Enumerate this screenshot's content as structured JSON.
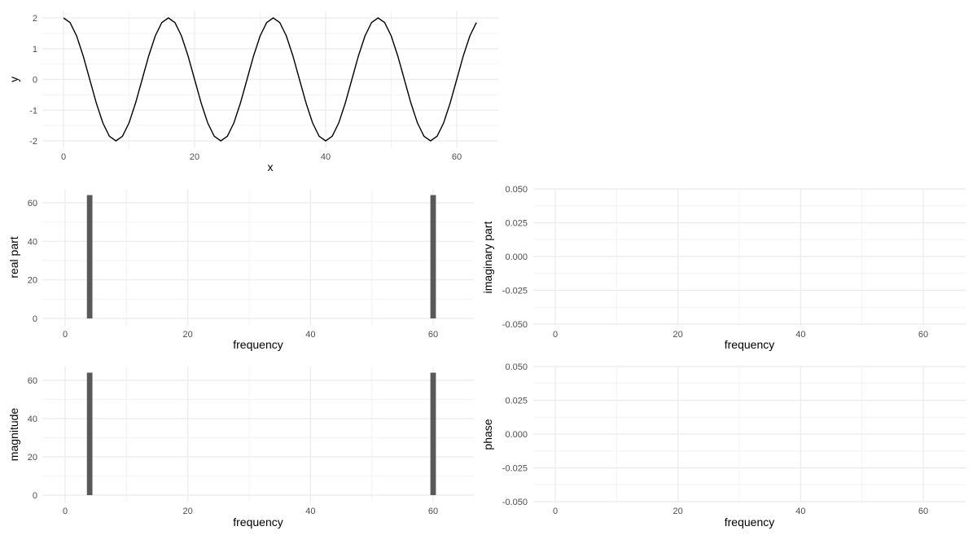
{
  "chart_data": [
    {
      "type": "line",
      "xlabel": "x",
      "ylabel": "y",
      "xlim": [
        -3,
        66
      ],
      "ylim": [
        -2.2,
        2.2
      ],
      "xticks": [
        "0",
        "20",
        "40",
        "60"
      ],
      "yticks": [
        "-2",
        "-1",
        "0",
        "1",
        "2"
      ],
      "x": [
        0,
        1,
        2,
        3,
        4,
        5,
        6,
        7,
        8,
        9,
        10,
        11,
        12,
        13,
        14,
        15,
        16,
        17,
        18,
        19,
        20,
        21,
        22,
        23,
        24,
        25,
        26,
        27,
        28,
        29,
        30,
        31,
        32,
        33,
        34,
        35,
        36,
        37,
        38,
        39,
        40,
        41,
        42,
        43,
        44,
        45,
        46,
        47,
        48,
        49,
        50,
        51,
        52,
        53,
        54,
        55,
        56,
        57,
        58,
        59,
        60,
        61,
        62,
        63
      ],
      "y": [
        2,
        1.848,
        1.414,
        0.765,
        0,
        -0.765,
        -1.414,
        -1.848,
        -2,
        -1.848,
        -1.414,
        -0.765,
        0,
        0.765,
        1.414,
        1.848,
        2,
        1.848,
        1.414,
        0.765,
        0,
        -0.765,
        -1.414,
        -1.848,
        -2,
        -1.848,
        -1.414,
        -0.765,
        0,
        0.765,
        1.414,
        1.848,
        2,
        1.848,
        1.414,
        0.765,
        0,
        -0.765,
        -1.414,
        -1.848,
        -2,
        -1.848,
        -1.414,
        -0.765,
        0,
        0.765,
        1.414,
        1.848,
        2,
        1.848,
        1.414,
        0.765,
        0,
        -0.765,
        -1.414,
        -1.848,
        -2,
        -1.848,
        -1.414,
        -0.765,
        0,
        0.765,
        1.414,
        1.848
      ],
      "grid": true
    },
    {
      "type": "bar",
      "xlabel": "frequency",
      "ylabel": "real part",
      "xlim": [
        -3.5,
        67
      ],
      "ylim": [
        -3.2,
        67.2
      ],
      "xticks": [
        "0",
        "20",
        "40",
        "60"
      ],
      "yticks": [
        "0",
        "20",
        "40",
        "60"
      ],
      "x": [
        4,
        60
      ],
      "values": [
        64,
        64
      ],
      "bar_color": "#595959",
      "grid": true
    },
    {
      "type": "bar",
      "xlabel": "frequency",
      "ylabel": "imaginary part",
      "xlim": [
        -3.5,
        67
      ],
      "ylim": [
        -0.05,
        0.05
      ],
      "xticks": [
        "0",
        "20",
        "40",
        "60"
      ],
      "yticks": [
        "-0.050",
        "-0.025",
        "0.000",
        "0.025",
        "0.050"
      ],
      "x": [],
      "values": [],
      "grid": true
    },
    {
      "type": "bar",
      "xlabel": "frequency",
      "ylabel": "magnitude",
      "xlim": [
        -3.5,
        67
      ],
      "ylim": [
        -3.2,
        67.2
      ],
      "xticks": [
        "0",
        "20",
        "40",
        "60"
      ],
      "yticks": [
        "0",
        "20",
        "40",
        "60"
      ],
      "x": [
        4,
        60
      ],
      "values": [
        64,
        64
      ],
      "bar_color": "#595959",
      "grid": true
    },
    {
      "type": "bar",
      "xlabel": "frequency",
      "ylabel": "phase",
      "xlim": [
        -3.5,
        67
      ],
      "ylim": [
        -0.05,
        0.05
      ],
      "xticks": [
        "0",
        "20",
        "40",
        "60"
      ],
      "yticks": [
        "-0.050",
        "-0.025",
        "0.000",
        "0.025",
        "0.050"
      ],
      "x": [],
      "values": [],
      "grid": true
    }
  ]
}
